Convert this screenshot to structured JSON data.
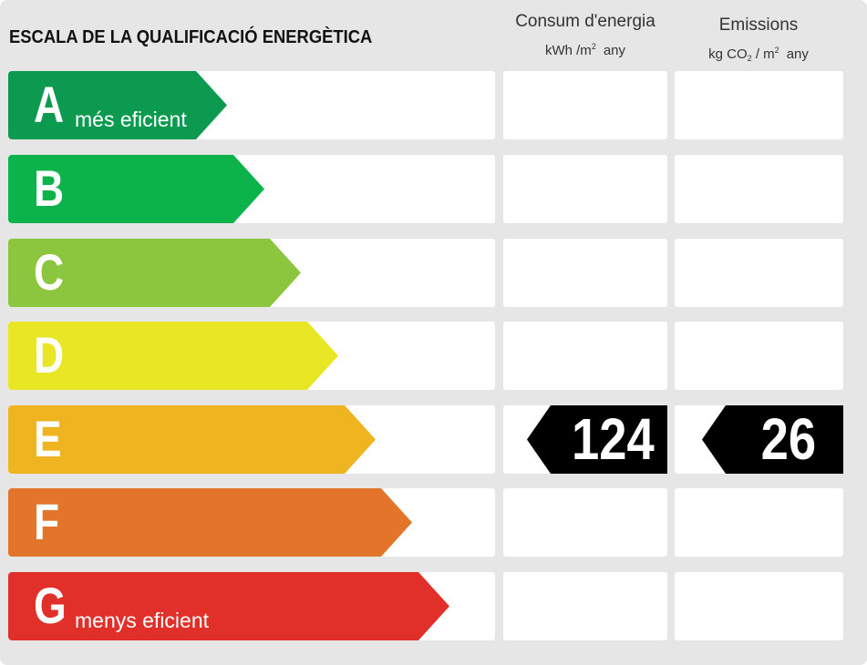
{
  "title": "ESCALA DE LA QUALIFICACIÓ ENERGÈTICA",
  "columns": {
    "energy": {
      "heading": "Consum d'energia",
      "unit_main": "kWh /m",
      "unit_exp": "2",
      "unit_tail": "any"
    },
    "emissions": {
      "heading": "Emissions",
      "unit_kg": "kg CO",
      "unit_sub": "2",
      "unit_slash": "/ m",
      "unit_exp": "2",
      "unit_tail": "any"
    }
  },
  "ratings": [
    {
      "letter": "A",
      "caption": "més eficient",
      "color": "#0b9a4f"
    },
    {
      "letter": "B",
      "caption": "",
      "color": "#0bb34a"
    },
    {
      "letter": "C",
      "caption": "",
      "color": "#8cc63f"
    },
    {
      "letter": "D",
      "caption": "",
      "color": "#e8e625"
    },
    {
      "letter": "E",
      "caption": "",
      "color": "#f0b421"
    },
    {
      "letter": "F",
      "caption": "",
      "color": "#e2752a"
    },
    {
      "letter": "G",
      "caption": "menys eficient",
      "color": "#e1302a"
    }
  ],
  "result": {
    "rating": "E",
    "energy_value": "124",
    "emissions_value": "26"
  }
}
